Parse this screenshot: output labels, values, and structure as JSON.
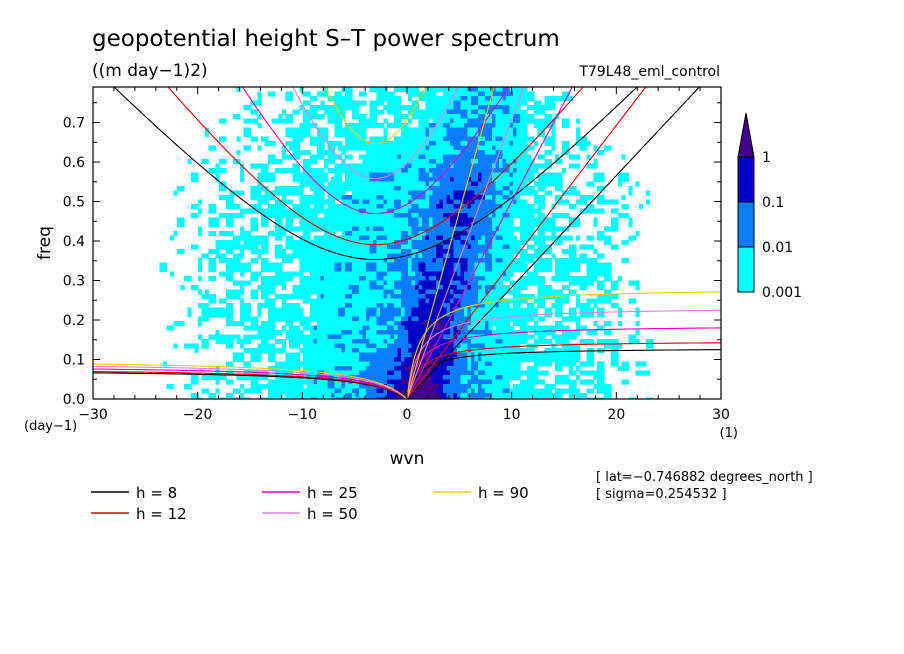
{
  "chart_data": {
    "type": "heatmap",
    "title": "geopotential height S–T power spectrum",
    "subtitle": "((m day−1)2)",
    "run_label": "T79L48_eml_control",
    "xlabel": "wvn",
    "ylabel": "freq",
    "x_unit_label": "(1)",
    "y_unit_label": "(day−1)",
    "xlim": [
      -30,
      30
    ],
    "ylim": [
      0,
      0.79
    ],
    "x_ticks": [
      -30,
      -20,
      -10,
      0,
      10,
      20,
      30
    ],
    "y_ticks": [
      0.0,
      0.1,
      0.2,
      0.3,
      0.4,
      0.5,
      0.6,
      0.7
    ],
    "x_tick_labels": [
      "−30",
      "−20",
      "−10",
      "0",
      "10",
      "20",
      "30"
    ],
    "y_tick_labels": [
      "0.0",
      "0.1",
      "0.2",
      "0.3",
      "0.4",
      "0.5",
      "0.6",
      "0.7"
    ],
    "colorbar": {
      "levels": [
        "0.001",
        "0.01",
        "0.1",
        "1"
      ],
      "colors": [
        "#00ffff",
        "#0a7cff",
        "#0000c8",
        "#44008a"
      ]
    },
    "dispersion_curves": [
      {
        "name": "h =  8",
        "h": 8,
        "color": "#000000"
      },
      {
        "name": "h = 12",
        "h": 12,
        "color": "#e00000"
      },
      {
        "name": "h = 25",
        "h": 25,
        "color": "#e000c0"
      },
      {
        "name": "h = 50",
        "h": 50,
        "color": "#e080e0"
      },
      {
        "name": "h = 90",
        "h": 90,
        "color": "#e8d000"
      }
    ],
    "annotations": [
      "[ lat=−0.746882 degrees_north ]",
      "[ sigma=0.254532 ]"
    ],
    "grid": false
  }
}
